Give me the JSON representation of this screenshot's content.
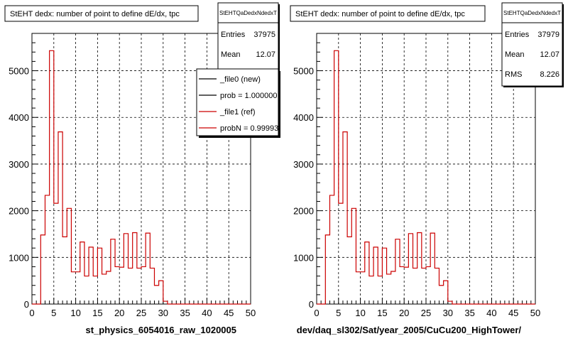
{
  "footer_text": "",
  "chart_data": [
    {
      "type": "histogram",
      "title": "StEHT dedx: number of point to define dE/dx, tpc",
      "xlabel": "st_physics_6054016_raw_1020005",
      "ylabel": "",
      "xlim": [
        0,
        50
      ],
      "ylim": [
        0,
        5800
      ],
      "x_ticks": [
        "0",
        "5",
        "10",
        "15",
        "20",
        "25",
        "30",
        "35",
        "40",
        "45",
        "50"
      ],
      "y_ticks": [
        "0",
        "1000",
        "2000",
        "3000",
        "4000",
        "5000"
      ],
      "grid": true,
      "stats": {
        "name": "StEHTQaDedxNdedxT",
        "rows": [
          {
            "label": "Entries",
            "value": "37975"
          },
          {
            "label": "Mean",
            "value": "12.07"
          }
        ]
      },
      "legend": {
        "placement": "top-right",
        "entries": [
          {
            "label": "_file0 (new)",
            "color": "#000000"
          },
          {
            "label": "prob = 1.000000",
            "color": "#000000"
          },
          {
            "label": "_file1 (ref)",
            "color": "#cc0000"
          },
          {
            "label": "probN = 0.99993",
            "color": "#cc0000"
          }
        ]
      },
      "bin_edges": [
        0,
        1,
        2,
        3,
        4,
        5,
        6,
        7,
        8,
        9,
        10,
        11,
        12,
        13,
        14,
        15,
        16,
        17,
        18,
        19,
        20,
        21,
        22,
        23,
        24,
        25,
        26,
        27,
        28,
        29,
        30,
        31,
        32,
        33,
        34,
        35,
        36,
        37,
        38,
        39,
        40,
        41,
        42,
        43,
        44,
        45,
        46,
        47,
        48,
        49,
        50
      ],
      "series": [
        {
          "color": "#cc0000",
          "values": [
            0,
            0,
            1480,
            2330,
            5430,
            2160,
            3690,
            1440,
            2050,
            690,
            690,
            1330,
            600,
            1220,
            600,
            1200,
            640,
            700,
            1390,
            800,
            790,
            1510,
            770,
            1530,
            770,
            800,
            1520,
            770,
            400,
            500,
            60,
            0,
            0,
            0,
            0,
            0,
            0,
            0,
            0,
            0,
            0,
            0,
            0,
            0,
            0,
            0,
            0,
            0,
            0,
            0
          ]
        }
      ]
    },
    {
      "type": "histogram",
      "title": "StEHT dedx: number of point to define dE/dx, tpc",
      "xlabel": "dev/daq_sl302/Sat/year_2005/CuCu200_HighTower/",
      "ylabel": "",
      "xlim": [
        0,
        50
      ],
      "ylim": [
        0,
        5800
      ],
      "x_ticks": [
        "0",
        "5",
        "10",
        "15",
        "20",
        "25",
        "30",
        "35",
        "40",
        "45",
        "50"
      ],
      "y_ticks": [
        "0",
        "1000",
        "2000",
        "3000",
        "4000",
        "5000"
      ],
      "grid": true,
      "stats": {
        "name": "StEHTQaDedxNdedxT",
        "rows": [
          {
            "label": "Entries",
            "value": "37979"
          },
          {
            "label": "Mean",
            "value": "12.07"
          },
          {
            "label": "RMS",
            "value": "8.226"
          }
        ]
      },
      "bin_edges": [
        0,
        1,
        2,
        3,
        4,
        5,
        6,
        7,
        8,
        9,
        10,
        11,
        12,
        13,
        14,
        15,
        16,
        17,
        18,
        19,
        20,
        21,
        22,
        23,
        24,
        25,
        26,
        27,
        28,
        29,
        30,
        31,
        32,
        33,
        34,
        35,
        36,
        37,
        38,
        39,
        40,
        41,
        42,
        43,
        44,
        45,
        46,
        47,
        48,
        49,
        50
      ],
      "series": [
        {
          "color": "#cc0000",
          "values": [
            0,
            0,
            1480,
            2330,
            5430,
            2160,
            3690,
            1440,
            2050,
            690,
            690,
            1330,
            600,
            1220,
            600,
            1200,
            640,
            700,
            1390,
            800,
            790,
            1510,
            770,
            1530,
            770,
            800,
            1520,
            770,
            400,
            500,
            60,
            0,
            0,
            0,
            0,
            0,
            0,
            0,
            0,
            0,
            0,
            0,
            0,
            0,
            0,
            0,
            0,
            0,
            0,
            0
          ]
        }
      ]
    }
  ]
}
